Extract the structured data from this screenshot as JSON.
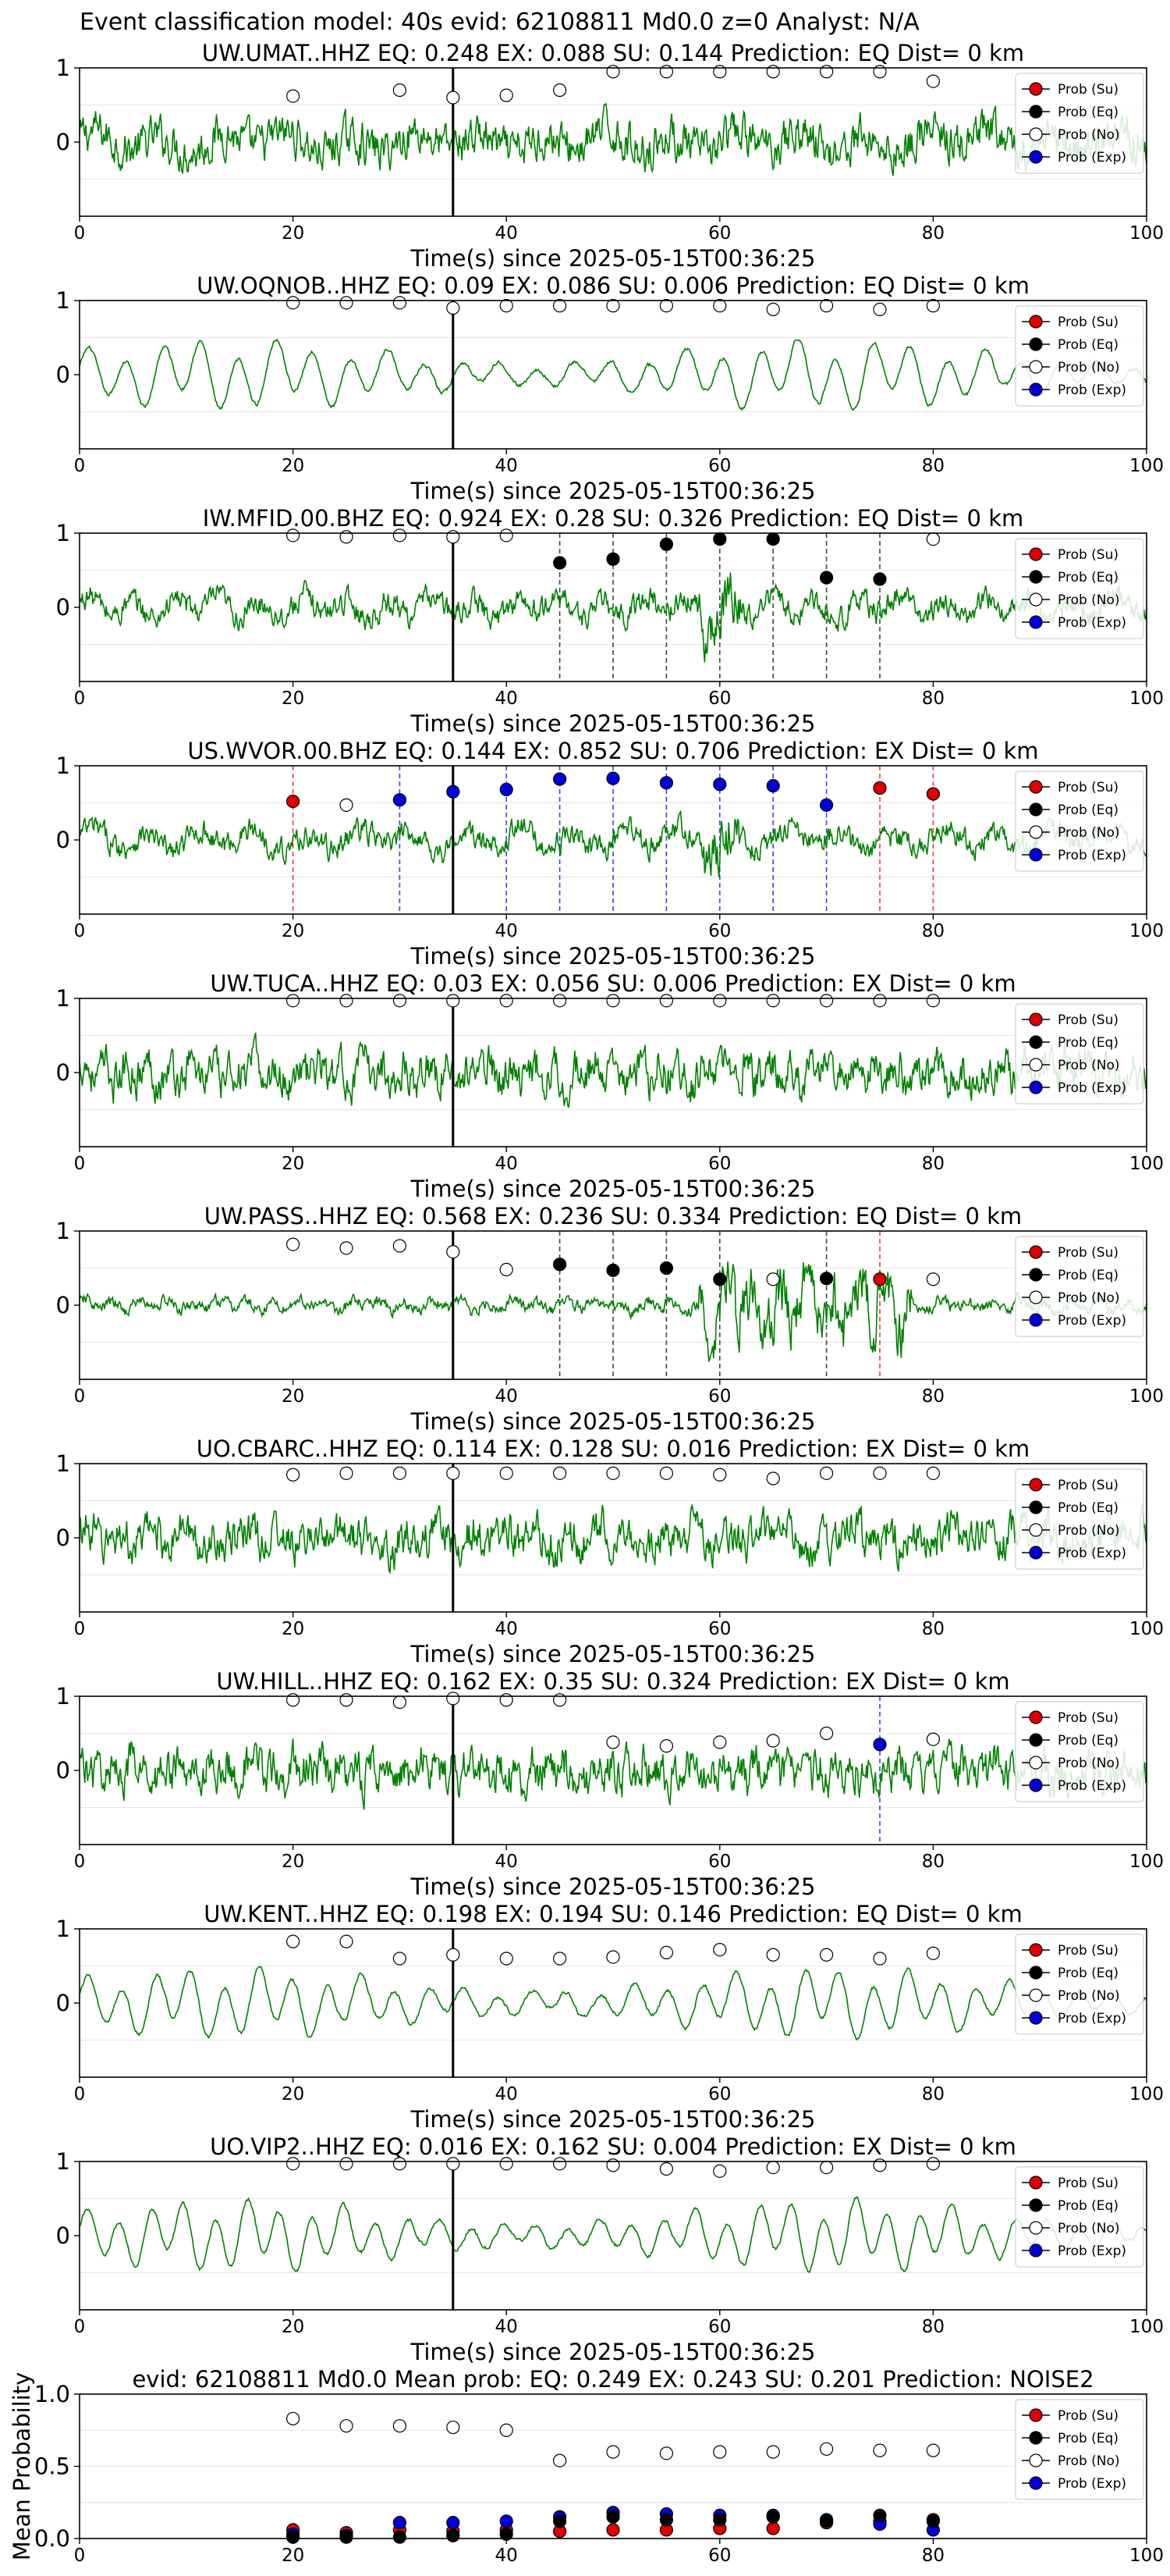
{
  "figure_title": "Event classification model: 40s evid: 62108811 Md0.0 z=0 Analyst: N/A",
  "legend_labels": [
    "Prob (Su)",
    "Prob (Eq)",
    "Prob (No)",
    "Prob (Exp)"
  ],
  "colors": {
    "su": "#e00000",
    "eq": "#000000",
    "no": "#ffffff",
    "exp": "#0000dd",
    "trace": "#008000",
    "arrival": "#000000"
  },
  "chart_data": [
    {
      "type": "line",
      "title": "UW.UMAT..HHZ   EQ: 0.248   EX: 0.088   SU: 0.144   Prediction: EQ    Dist= 0 km",
      "xlabel": "Time(s) since 2025-05-15T00:36:25",
      "xlim": [
        0,
        100
      ],
      "ylim": [
        -1,
        1
      ],
      "xticks": [
        "0",
        "20",
        "40",
        "60",
        "80",
        "100"
      ],
      "yticks": [
        "1",
        "0"
      ],
      "arrival_time": 35,
      "waveform": {
        "style": "noisy",
        "period": 6
      },
      "prob_points": [
        {
          "x": 20,
          "y": 0.62,
          "class": "no"
        },
        {
          "x": 30,
          "y": 0.7,
          "class": "no"
        },
        {
          "x": 35,
          "y": 0.6,
          "class": "no"
        },
        {
          "x": 40,
          "y": 0.63,
          "class": "no"
        },
        {
          "x": 45,
          "y": 0.7,
          "class": "no"
        },
        {
          "x": 50,
          "y": 0.95,
          "class": "no"
        },
        {
          "x": 55,
          "y": 0.95,
          "class": "no"
        },
        {
          "x": 60,
          "y": 0.95,
          "class": "no"
        },
        {
          "x": 65,
          "y": 0.95,
          "class": "no"
        },
        {
          "x": 70,
          "y": 0.95,
          "class": "no"
        },
        {
          "x": 75,
          "y": 0.95,
          "class": "no"
        },
        {
          "x": 80,
          "y": 0.82,
          "class": "no"
        }
      ]
    },
    {
      "type": "line",
      "title": "UW.OQNOB..HHZ   EQ: 0.09   EX: 0.086   SU: 0.006   Prediction: EQ    Dist= 0 km",
      "xlabel": "Time(s) since 2025-05-15T00:36:25",
      "xlim": [
        0,
        100
      ],
      "ylim": [
        -1,
        1
      ],
      "xticks": [
        "0",
        "20",
        "40",
        "60",
        "80",
        "100"
      ],
      "yticks": [
        "1",
        "0"
      ],
      "arrival_time": 35,
      "waveform": {
        "style": "smooth",
        "period": 3.5
      },
      "prob_points": [
        {
          "x": 20,
          "y": 0.97,
          "class": "no"
        },
        {
          "x": 25,
          "y": 0.97,
          "class": "no"
        },
        {
          "x": 30,
          "y": 0.97,
          "class": "no"
        },
        {
          "x": 35,
          "y": 0.9,
          "class": "no"
        },
        {
          "x": 40,
          "y": 0.93,
          "class": "no"
        },
        {
          "x": 45,
          "y": 0.93,
          "class": "no"
        },
        {
          "x": 50,
          "y": 0.93,
          "class": "no"
        },
        {
          "x": 55,
          "y": 0.93,
          "class": "no"
        },
        {
          "x": 60,
          "y": 0.93,
          "class": "no"
        },
        {
          "x": 65,
          "y": 0.88,
          "class": "no"
        },
        {
          "x": 70,
          "y": 0.93,
          "class": "no"
        },
        {
          "x": 75,
          "y": 0.88,
          "class": "no"
        },
        {
          "x": 80,
          "y": 0.93,
          "class": "no"
        }
      ]
    },
    {
      "type": "line",
      "title": "IW.MFID.00.BHZ   EQ: 0.924   EX: 0.28   SU: 0.326   Prediction: EQ    Dist= 0 km",
      "xlabel": "Time(s) since 2025-05-15T00:36:25",
      "xlim": [
        0,
        100
      ],
      "ylim": [
        -1,
        1
      ],
      "xticks": [
        "0",
        "20",
        "40",
        "60",
        "80",
        "100"
      ],
      "yticks": [
        "1",
        "0"
      ],
      "arrival_time": 35,
      "waveform": {
        "style": "mixed",
        "period": 4
      },
      "prob_points": [
        {
          "x": 20,
          "y": 0.97,
          "class": "no"
        },
        {
          "x": 25,
          "y": 0.95,
          "class": "no"
        },
        {
          "x": 30,
          "y": 0.97,
          "class": "no"
        },
        {
          "x": 35,
          "y": 0.95,
          "class": "no"
        },
        {
          "x": 40,
          "y": 0.97,
          "class": "no"
        },
        {
          "x": 45,
          "y": 0.6,
          "class": "eq"
        },
        {
          "x": 50,
          "y": 0.65,
          "class": "eq"
        },
        {
          "x": 55,
          "y": 0.85,
          "class": "eq"
        },
        {
          "x": 60,
          "y": 0.92,
          "class": "eq"
        },
        {
          "x": 65,
          "y": 0.92,
          "class": "eq"
        },
        {
          "x": 70,
          "y": 0.4,
          "class": "eq"
        },
        {
          "x": 75,
          "y": 0.38,
          "class": "eq"
        },
        {
          "x": 80,
          "y": 0.92,
          "class": "no"
        }
      ]
    },
    {
      "type": "line",
      "title": "US.WVOR.00.BHZ   EQ: 0.144   EX: 0.852   SU: 0.706   Prediction: EX    Dist= 0 km",
      "xlabel": "Time(s) since 2025-05-15T00:36:25",
      "xlim": [
        0,
        100
      ],
      "ylim": [
        -1,
        1
      ],
      "xticks": [
        "0",
        "20",
        "40",
        "60",
        "80",
        "100"
      ],
      "yticks": [
        "1",
        "0"
      ],
      "arrival_time": 35,
      "waveform": {
        "style": "mixed",
        "period": 5
      },
      "prob_points": [
        {
          "x": 20,
          "y": 0.52,
          "class": "su"
        },
        {
          "x": 25,
          "y": 0.47,
          "class": "no"
        },
        {
          "x": 30,
          "y": 0.54,
          "class": "exp"
        },
        {
          "x": 35,
          "y": 0.65,
          "class": "exp"
        },
        {
          "x": 40,
          "y": 0.68,
          "class": "exp"
        },
        {
          "x": 45,
          "y": 0.82,
          "class": "exp"
        },
        {
          "x": 50,
          "y": 0.83,
          "class": "exp"
        },
        {
          "x": 55,
          "y": 0.77,
          "class": "exp"
        },
        {
          "x": 60,
          "y": 0.75,
          "class": "exp"
        },
        {
          "x": 65,
          "y": 0.73,
          "class": "exp"
        },
        {
          "x": 70,
          "y": 0.47,
          "class": "exp"
        },
        {
          "x": 75,
          "y": 0.7,
          "class": "su"
        },
        {
          "x": 80,
          "y": 0.62,
          "class": "su"
        }
      ]
    },
    {
      "type": "line",
      "title": "UW.TUCA..HHZ   EQ: 0.03   EX: 0.056   SU: 0.006   Prediction: EX    Dist= 0 km",
      "xlabel": "Time(s) since 2025-05-15T00:36:25",
      "xlim": [
        0,
        100
      ],
      "ylim": [
        -1,
        1
      ],
      "xticks": [
        "0",
        "20",
        "40",
        "60",
        "80",
        "100"
      ],
      "yticks": [
        "1",
        "0"
      ],
      "arrival_time": 35,
      "waveform": {
        "style": "noisy",
        "period": 2
      },
      "prob_points": [
        {
          "x": 20,
          "y": 0.97,
          "class": "no"
        },
        {
          "x": 25,
          "y": 0.97,
          "class": "no"
        },
        {
          "x": 30,
          "y": 0.97,
          "class": "no"
        },
        {
          "x": 35,
          "y": 0.97,
          "class": "no"
        },
        {
          "x": 40,
          "y": 0.97,
          "class": "no"
        },
        {
          "x": 45,
          "y": 0.97,
          "class": "no"
        },
        {
          "x": 50,
          "y": 0.97,
          "class": "no"
        },
        {
          "x": 55,
          "y": 0.97,
          "class": "no"
        },
        {
          "x": 60,
          "y": 0.97,
          "class": "no"
        },
        {
          "x": 65,
          "y": 0.97,
          "class": "no"
        },
        {
          "x": 70,
          "y": 0.97,
          "class": "no"
        },
        {
          "x": 75,
          "y": 0.97,
          "class": "no"
        },
        {
          "x": 80,
          "y": 0.97,
          "class": "no"
        }
      ]
    },
    {
      "type": "line",
      "title": "UW.PASS..HHZ   EQ: 0.568   EX: 0.236   SU: 0.334   Prediction: EQ    Dist= 0 km",
      "xlabel": "Time(s) since 2025-05-15T00:36:25",
      "xlim": [
        0,
        100
      ],
      "ylim": [
        -1,
        1
      ],
      "xticks": [
        "0",
        "20",
        "40",
        "60",
        "80",
        "100"
      ],
      "yticks": [
        "1",
        "0"
      ],
      "arrival_time": 35,
      "waveform": {
        "style": "burst",
        "period": 2.5
      },
      "prob_points": [
        {
          "x": 20,
          "y": 0.82,
          "class": "no"
        },
        {
          "x": 25,
          "y": 0.77,
          "class": "no"
        },
        {
          "x": 30,
          "y": 0.8,
          "class": "no"
        },
        {
          "x": 35,
          "y": 0.72,
          "class": "no"
        },
        {
          "x": 40,
          "y": 0.48,
          "class": "no"
        },
        {
          "x": 45,
          "y": 0.55,
          "class": "eq"
        },
        {
          "x": 50,
          "y": 0.47,
          "class": "eq"
        },
        {
          "x": 55,
          "y": 0.5,
          "class": "eq"
        },
        {
          "x": 60,
          "y": 0.35,
          "class": "eq"
        },
        {
          "x": 65,
          "y": 0.35,
          "class": "no"
        },
        {
          "x": 70,
          "y": 0.36,
          "class": "eq"
        },
        {
          "x": 75,
          "y": 0.35,
          "class": "su"
        },
        {
          "x": 80,
          "y": 0.35,
          "class": "no"
        }
      ]
    },
    {
      "type": "line",
      "title": "UO.CBARC..HHZ   EQ: 0.114   EX: 0.128   SU: 0.016   Prediction: EX    Dist= 0 km",
      "xlabel": "Time(s) since 2025-05-15T00:36:25",
      "xlim": [
        0,
        100
      ],
      "ylim": [
        -1,
        1
      ],
      "xticks": [
        "0",
        "20",
        "40",
        "60",
        "80",
        "100"
      ],
      "yticks": [
        "1",
        "0"
      ],
      "arrival_time": 35,
      "waveform": {
        "style": "noisy",
        "period": 3
      },
      "prob_points": [
        {
          "x": 20,
          "y": 0.85,
          "class": "no"
        },
        {
          "x": 25,
          "y": 0.87,
          "class": "no"
        },
        {
          "x": 30,
          "y": 0.87,
          "class": "no"
        },
        {
          "x": 35,
          "y": 0.87,
          "class": "no"
        },
        {
          "x": 40,
          "y": 0.87,
          "class": "no"
        },
        {
          "x": 45,
          "y": 0.87,
          "class": "no"
        },
        {
          "x": 50,
          "y": 0.87,
          "class": "no"
        },
        {
          "x": 55,
          "y": 0.87,
          "class": "no"
        },
        {
          "x": 60,
          "y": 0.85,
          "class": "no"
        },
        {
          "x": 65,
          "y": 0.8,
          "class": "no"
        },
        {
          "x": 70,
          "y": 0.87,
          "class": "no"
        },
        {
          "x": 75,
          "y": 0.87,
          "class": "no"
        },
        {
          "x": 80,
          "y": 0.87,
          "class": "no"
        }
      ]
    },
    {
      "type": "line",
      "title": "UW.HILL..HHZ   EQ: 0.162   EX: 0.35   SU: 0.324   Prediction: EX    Dist= 0 km",
      "xlabel": "Time(s) since 2025-05-15T00:36:25",
      "xlim": [
        0,
        100
      ],
      "ylim": [
        -1,
        1
      ],
      "xticks": [
        "0",
        "20",
        "40",
        "60",
        "80",
        "100"
      ],
      "yticks": [
        "1",
        "0"
      ],
      "arrival_time": 35,
      "waveform": {
        "style": "noisy",
        "period": 1.5
      },
      "prob_points": [
        {
          "x": 20,
          "y": 0.95,
          "class": "no"
        },
        {
          "x": 25,
          "y": 0.95,
          "class": "no"
        },
        {
          "x": 30,
          "y": 0.92,
          "class": "no"
        },
        {
          "x": 35,
          "y": 0.97,
          "class": "no"
        },
        {
          "x": 40,
          "y": 0.95,
          "class": "no"
        },
        {
          "x": 45,
          "y": 0.95,
          "class": "no"
        },
        {
          "x": 50,
          "y": 0.38,
          "class": "no"
        },
        {
          "x": 55,
          "y": 0.33,
          "class": "no"
        },
        {
          "x": 60,
          "y": 0.38,
          "class": "no"
        },
        {
          "x": 65,
          "y": 0.4,
          "class": "no"
        },
        {
          "x": 70,
          "y": 0.5,
          "class": "no"
        },
        {
          "x": 75,
          "y": 0.35,
          "class": "exp"
        },
        {
          "x": 80,
          "y": 0.42,
          "class": "no"
        }
      ]
    },
    {
      "type": "line",
      "title": "UW.KENT..HHZ   EQ: 0.198   EX: 0.194   SU: 0.146   Prediction: EQ    Dist= 0 km",
      "xlabel": "Time(s) since 2025-05-15T00:36:25",
      "xlim": [
        0,
        100
      ],
      "ylim": [
        -1,
        1
      ],
      "xticks": [
        "0",
        "20",
        "40",
        "60",
        "80",
        "100"
      ],
      "yticks": [
        "1",
        "0"
      ],
      "arrival_time": 35,
      "waveform": {
        "style": "smooth",
        "period": 3.2
      },
      "prob_points": [
        {
          "x": 20,
          "y": 0.83,
          "class": "no"
        },
        {
          "x": 25,
          "y": 0.83,
          "class": "no"
        },
        {
          "x": 30,
          "y": 0.6,
          "class": "no"
        },
        {
          "x": 35,
          "y": 0.65,
          "class": "no"
        },
        {
          "x": 40,
          "y": 0.6,
          "class": "no"
        },
        {
          "x": 45,
          "y": 0.6,
          "class": "no"
        },
        {
          "x": 50,
          "y": 0.62,
          "class": "no"
        },
        {
          "x": 55,
          "y": 0.68,
          "class": "no"
        },
        {
          "x": 60,
          "y": 0.72,
          "class": "no"
        },
        {
          "x": 65,
          "y": 0.65,
          "class": "no"
        },
        {
          "x": 70,
          "y": 0.65,
          "class": "no"
        },
        {
          "x": 75,
          "y": 0.6,
          "class": "no"
        },
        {
          "x": 80,
          "y": 0.67,
          "class": "no"
        }
      ]
    },
    {
      "type": "line",
      "title": "UO.VIP2..HHZ   EQ: 0.016   EX: 0.162   SU: 0.004   Prediction: EX    Dist= 0 km",
      "xlabel": "Time(s) since 2025-05-15T00:36:25",
      "xlim": [
        0,
        100
      ],
      "ylim": [
        -1,
        1
      ],
      "xticks": [
        "0",
        "20",
        "40",
        "60",
        "80",
        "100"
      ],
      "yticks": [
        "1",
        "0"
      ],
      "arrival_time": 35,
      "waveform": {
        "style": "smooth",
        "period": 3
      },
      "prob_points": [
        {
          "x": 20,
          "y": 0.97,
          "class": "no"
        },
        {
          "x": 25,
          "y": 0.97,
          "class": "no"
        },
        {
          "x": 30,
          "y": 0.97,
          "class": "no"
        },
        {
          "x": 35,
          "y": 0.97,
          "class": "no"
        },
        {
          "x": 40,
          "y": 0.97,
          "class": "no"
        },
        {
          "x": 45,
          "y": 0.97,
          "class": "no"
        },
        {
          "x": 50,
          "y": 0.95,
          "class": "no"
        },
        {
          "x": 55,
          "y": 0.9,
          "class": "no"
        },
        {
          "x": 60,
          "y": 0.87,
          "class": "no"
        },
        {
          "x": 65,
          "y": 0.92,
          "class": "no"
        },
        {
          "x": 70,
          "y": 0.92,
          "class": "no"
        },
        {
          "x": 75,
          "y": 0.95,
          "class": "no"
        },
        {
          "x": 80,
          "y": 0.97,
          "class": "no"
        }
      ]
    },
    {
      "type": "scatter",
      "title": "evid: 62108811  Md0.0   Mean prob:   EQ: 0.249  EX: 0.243  SU: 0.201   Prediction: NOISE2",
      "xlabel": "",
      "ylabel": "Mean Probability",
      "xlim": [
        0,
        100
      ],
      "ylim": [
        0,
        1
      ],
      "xticks": [
        "0",
        "20",
        "40",
        "60",
        "80",
        "100"
      ],
      "yticks": [
        "1.0",
        "0.5",
        "0.0"
      ],
      "x": [
        20,
        25,
        30,
        35,
        40,
        45,
        50,
        55,
        60,
        65,
        70,
        75,
        80
      ],
      "series": [
        {
          "class": "no",
          "values": [
            0.83,
            0.78,
            0.78,
            0.77,
            0.75,
            0.54,
            0.6,
            0.59,
            0.6,
            0.6,
            0.62,
            0.61,
            0.61
          ]
        },
        {
          "class": "su",
          "values": [
            0.06,
            0.04,
            0.06,
            0.05,
            0.06,
            0.05,
            0.06,
            0.06,
            0.07,
            0.07,
            0.11,
            0.12,
            0.13
          ]
        },
        {
          "class": "exp",
          "values": [
            0.03,
            0.02,
            0.11,
            0.11,
            0.12,
            0.15,
            0.18,
            0.17,
            0.16,
            0.16,
            0.13,
            0.1,
            0.06
          ]
        },
        {
          "class": "eq",
          "values": [
            0.01,
            0.01,
            0.01,
            0.02,
            0.03,
            0.12,
            0.15,
            0.13,
            0.13,
            0.15,
            0.12,
            0.16,
            0.12
          ]
        }
      ]
    }
  ]
}
